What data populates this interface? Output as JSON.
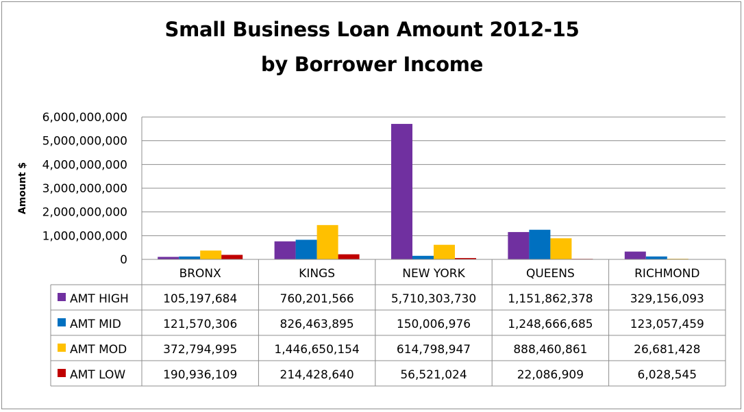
{
  "chart_data": {
    "type": "bar",
    "title": "Small Business Loan Amount 2012-15",
    "subtitle": "by Borrower Income",
    "ylabel": "Amount $",
    "ylim": [
      0,
      6000000000
    ],
    "yticks": [
      "0",
      "1,000,000,000",
      "2,000,000,000",
      "3,000,000,000",
      "4,000,000,000",
      "5,000,000,000",
      "6,000,000,000"
    ],
    "grid": true,
    "legend_placement": "data-table",
    "categories": [
      "BRONX",
      "KINGS",
      "NEW YORK",
      "QUEENS",
      "RICHMOND"
    ],
    "series": [
      {
        "name": "AMT HIGH",
        "color": "#7030a0",
        "values": [
          105197684,
          760201566,
          5710303730,
          1151862378,
          329156093
        ],
        "labels": [
          "105,197,684",
          "760,201,566",
          "5,710,303,730",
          "1,151,862,378",
          "329,156,093"
        ]
      },
      {
        "name": "AMT MID",
        "color": "#0070c0",
        "values": [
          121570306,
          826463895,
          150006976,
          1248666685,
          123057459
        ],
        "labels": [
          "121,570,306",
          "826,463,895",
          "150,006,976",
          "1,248,666,685",
          "123,057,459"
        ]
      },
      {
        "name": "AMT MOD",
        "color": "#ffc000",
        "values": [
          372794995,
          1446650154,
          614798947,
          888460861,
          26681428
        ],
        "labels": [
          "372,794,995",
          "1,446,650,154",
          "614,798,947",
          "888,460,861",
          "26,681,428"
        ]
      },
      {
        "name": "AMT LOW",
        "color": "#c00000",
        "values": [
          190936109,
          214428640,
          56521024,
          22086909,
          6028545
        ],
        "labels": [
          "190,936,109",
          "214,428,640",
          "56,521,024",
          "22,086,909",
          "6,028,545"
        ]
      }
    ]
  }
}
